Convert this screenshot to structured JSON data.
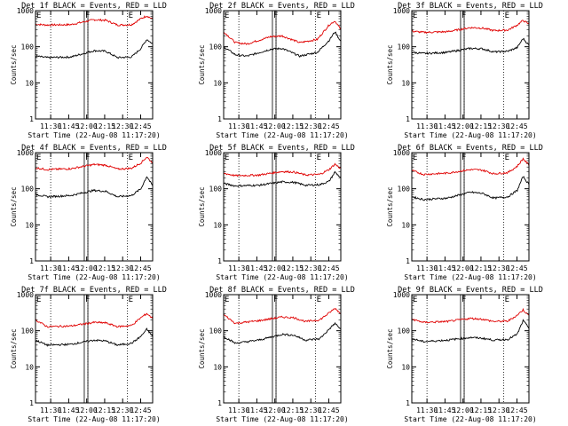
{
  "chart_data": {
    "type": "line",
    "shared": {
      "xlabel": "Start Time (22-Aug-08 11:17:20)",
      "ylabel": "Counts/sec",
      "x_ticks": [
        "11:30",
        "11:45",
        "12:00",
        "12:15",
        "12:30",
        "12:45"
      ],
      "y_ticks": [
        "1",
        "10",
        "100",
        "1000"
      ],
      "y_scale": "log",
      "ylim": [
        1,
        1000
      ],
      "xlim": [
        "11:17:20",
        "12:55"
      ],
      "dotted_markers": [
        "11:30",
        "12:01",
        "12:34"
      ],
      "box_marker": {
        "start": "11:58",
        "end": "12:01",
        "label": "F"
      },
      "markers_text": [
        {
          "time": "11:17",
          "label": "E"
        },
        {
          "time": "12:34",
          "label": "E"
        }
      ],
      "series_colors": {
        "events": "#000000",
        "lld": "#e00000"
      }
    },
    "panels": [
      {
        "title": "Det 1f BLACK = Events, RED = LLD",
        "events": [
          [
            0,
            55
          ],
          [
            0.1,
            50
          ],
          [
            0.3,
            52
          ],
          [
            0.5,
            78
          ],
          [
            0.6,
            75
          ],
          [
            0.7,
            50
          ],
          [
            0.82,
            52
          ],
          [
            0.9,
            90
          ],
          [
            0.95,
            160
          ],
          [
            1.0,
            120
          ]
        ],
        "lld": [
          [
            0,
            420
          ],
          [
            0.1,
            400
          ],
          [
            0.3,
            410
          ],
          [
            0.5,
            560
          ],
          [
            0.6,
            540
          ],
          [
            0.7,
            400
          ],
          [
            0.82,
            410
          ],
          [
            0.9,
            600
          ],
          [
            0.95,
            720
          ],
          [
            1.0,
            580
          ]
        ]
      },
      {
        "title": "Det 2f BLACK = Events, RED = LLD",
        "events": [
          [
            0,
            100
          ],
          [
            0.1,
            60
          ],
          [
            0.2,
            55
          ],
          [
            0.4,
            85
          ],
          [
            0.5,
            90
          ],
          [
            0.65,
            55
          ],
          [
            0.8,
            70
          ],
          [
            0.9,
            150
          ],
          [
            0.95,
            260
          ],
          [
            1.0,
            140
          ]
        ],
        "lld": [
          [
            0,
            260
          ],
          [
            0.1,
            130
          ],
          [
            0.2,
            120
          ],
          [
            0.4,
            190
          ],
          [
            0.5,
            200
          ],
          [
            0.65,
            130
          ],
          [
            0.8,
            160
          ],
          [
            0.9,
            400
          ],
          [
            0.95,
            520
          ],
          [
            1.0,
            300
          ]
        ]
      },
      {
        "title": "Det 3f BLACK = Events, RED = LLD",
        "events": [
          [
            0,
            70
          ],
          [
            0.1,
            65
          ],
          [
            0.3,
            70
          ],
          [
            0.5,
            90
          ],
          [
            0.6,
            88
          ],
          [
            0.7,
            72
          ],
          [
            0.82,
            75
          ],
          [
            0.9,
            95
          ],
          [
            0.95,
            170
          ],
          [
            1.0,
            110
          ]
        ],
        "lld": [
          [
            0,
            270
          ],
          [
            0.1,
            250
          ],
          [
            0.3,
            260
          ],
          [
            0.5,
            340
          ],
          [
            0.6,
            330
          ],
          [
            0.7,
            280
          ],
          [
            0.82,
            290
          ],
          [
            0.9,
            400
          ],
          [
            0.95,
            540
          ],
          [
            1.0,
            420
          ]
        ]
      },
      {
        "title": "Det 4f BLACK = Events, RED = LLD",
        "events": [
          [
            0,
            70
          ],
          [
            0.1,
            60
          ],
          [
            0.3,
            65
          ],
          [
            0.5,
            90
          ],
          [
            0.6,
            85
          ],
          [
            0.7,
            60
          ],
          [
            0.82,
            65
          ],
          [
            0.9,
            100
          ],
          [
            0.95,
            220
          ],
          [
            1.0,
            120
          ]
        ],
        "lld": [
          [
            0,
            380
          ],
          [
            0.1,
            340
          ],
          [
            0.3,
            360
          ],
          [
            0.5,
            470
          ],
          [
            0.6,
            450
          ],
          [
            0.7,
            350
          ],
          [
            0.82,
            370
          ],
          [
            0.9,
            520
          ],
          [
            0.95,
            760
          ],
          [
            1.0,
            520
          ]
        ]
      },
      {
        "title": "Det 5f BLACK = Events, RED = LLD",
        "events": [
          [
            0,
            140
          ],
          [
            0.1,
            120
          ],
          [
            0.3,
            125
          ],
          [
            0.5,
            155
          ],
          [
            0.6,
            150
          ],
          [
            0.7,
            125
          ],
          [
            0.82,
            130
          ],
          [
            0.9,
            160
          ],
          [
            0.95,
            290
          ],
          [
            1.0,
            200
          ]
        ],
        "lld": [
          [
            0,
            270
          ],
          [
            0.1,
            230
          ],
          [
            0.3,
            240
          ],
          [
            0.5,
            300
          ],
          [
            0.6,
            290
          ],
          [
            0.7,
            240
          ],
          [
            0.82,
            250
          ],
          [
            0.9,
            340
          ],
          [
            0.95,
            480
          ],
          [
            1.0,
            360
          ]
        ]
      },
      {
        "title": "Det 6f BLACK = Events, RED = LLD",
        "events": [
          [
            0,
            60
          ],
          [
            0.1,
            50
          ],
          [
            0.3,
            55
          ],
          [
            0.5,
            80
          ],
          [
            0.6,
            75
          ],
          [
            0.7,
            55
          ],
          [
            0.82,
            60
          ],
          [
            0.9,
            90
          ],
          [
            0.95,
            220
          ],
          [
            1.0,
            130
          ]
        ],
        "lld": [
          [
            0,
            320
          ],
          [
            0.1,
            250
          ],
          [
            0.3,
            270
          ],
          [
            0.5,
            340
          ],
          [
            0.6,
            330
          ],
          [
            0.7,
            260
          ],
          [
            0.82,
            280
          ],
          [
            0.9,
            420
          ],
          [
            0.95,
            680
          ],
          [
            1.0,
            450
          ]
        ]
      },
      {
        "title": "Det 7f BLACK = Events, RED = LLD",
        "events": [
          [
            0,
            55
          ],
          [
            0.1,
            40
          ],
          [
            0.3,
            42
          ],
          [
            0.5,
            55
          ],
          [
            0.6,
            52
          ],
          [
            0.7,
            40
          ],
          [
            0.82,
            45
          ],
          [
            0.9,
            70
          ],
          [
            0.95,
            110
          ],
          [
            1.0,
            70
          ]
        ],
        "lld": [
          [
            0,
            200
          ],
          [
            0.1,
            130
          ],
          [
            0.3,
            135
          ],
          [
            0.5,
            170
          ],
          [
            0.6,
            165
          ],
          [
            0.7,
            130
          ],
          [
            0.82,
            140
          ],
          [
            0.9,
            230
          ],
          [
            0.95,
            300
          ],
          [
            1.0,
            220
          ]
        ]
      },
      {
        "title": "Det 8f BLACK = Events, RED = LLD",
        "events": [
          [
            0,
            70
          ],
          [
            0.1,
            45
          ],
          [
            0.3,
            55
          ],
          [
            0.5,
            80
          ],
          [
            0.6,
            75
          ],
          [
            0.7,
            55
          ],
          [
            0.82,
            60
          ],
          [
            0.9,
            110
          ],
          [
            0.95,
            160
          ],
          [
            1.0,
            110
          ]
        ],
        "lld": [
          [
            0,
            280
          ],
          [
            0.1,
            160
          ],
          [
            0.3,
            190
          ],
          [
            0.5,
            240
          ],
          [
            0.6,
            230
          ],
          [
            0.7,
            180
          ],
          [
            0.82,
            200
          ],
          [
            0.9,
            310
          ],
          [
            0.95,
            420
          ],
          [
            1.0,
            300
          ]
        ]
      },
      {
        "title": "Det 9f BLACK = Events, RED = LLD",
        "events": [
          [
            0,
            60
          ],
          [
            0.1,
            50
          ],
          [
            0.3,
            55
          ],
          [
            0.5,
            65
          ],
          [
            0.6,
            62
          ],
          [
            0.7,
            55
          ],
          [
            0.82,
            58
          ],
          [
            0.9,
            80
          ],
          [
            0.95,
            190
          ],
          [
            1.0,
            120
          ]
        ],
        "lld": [
          [
            0,
            210
          ],
          [
            0.1,
            170
          ],
          [
            0.3,
            180
          ],
          [
            0.5,
            220
          ],
          [
            0.6,
            210
          ],
          [
            0.7,
            180
          ],
          [
            0.82,
            185
          ],
          [
            0.9,
            270
          ],
          [
            0.95,
            380
          ],
          [
            1.0,
            260
          ]
        ]
      }
    ]
  }
}
